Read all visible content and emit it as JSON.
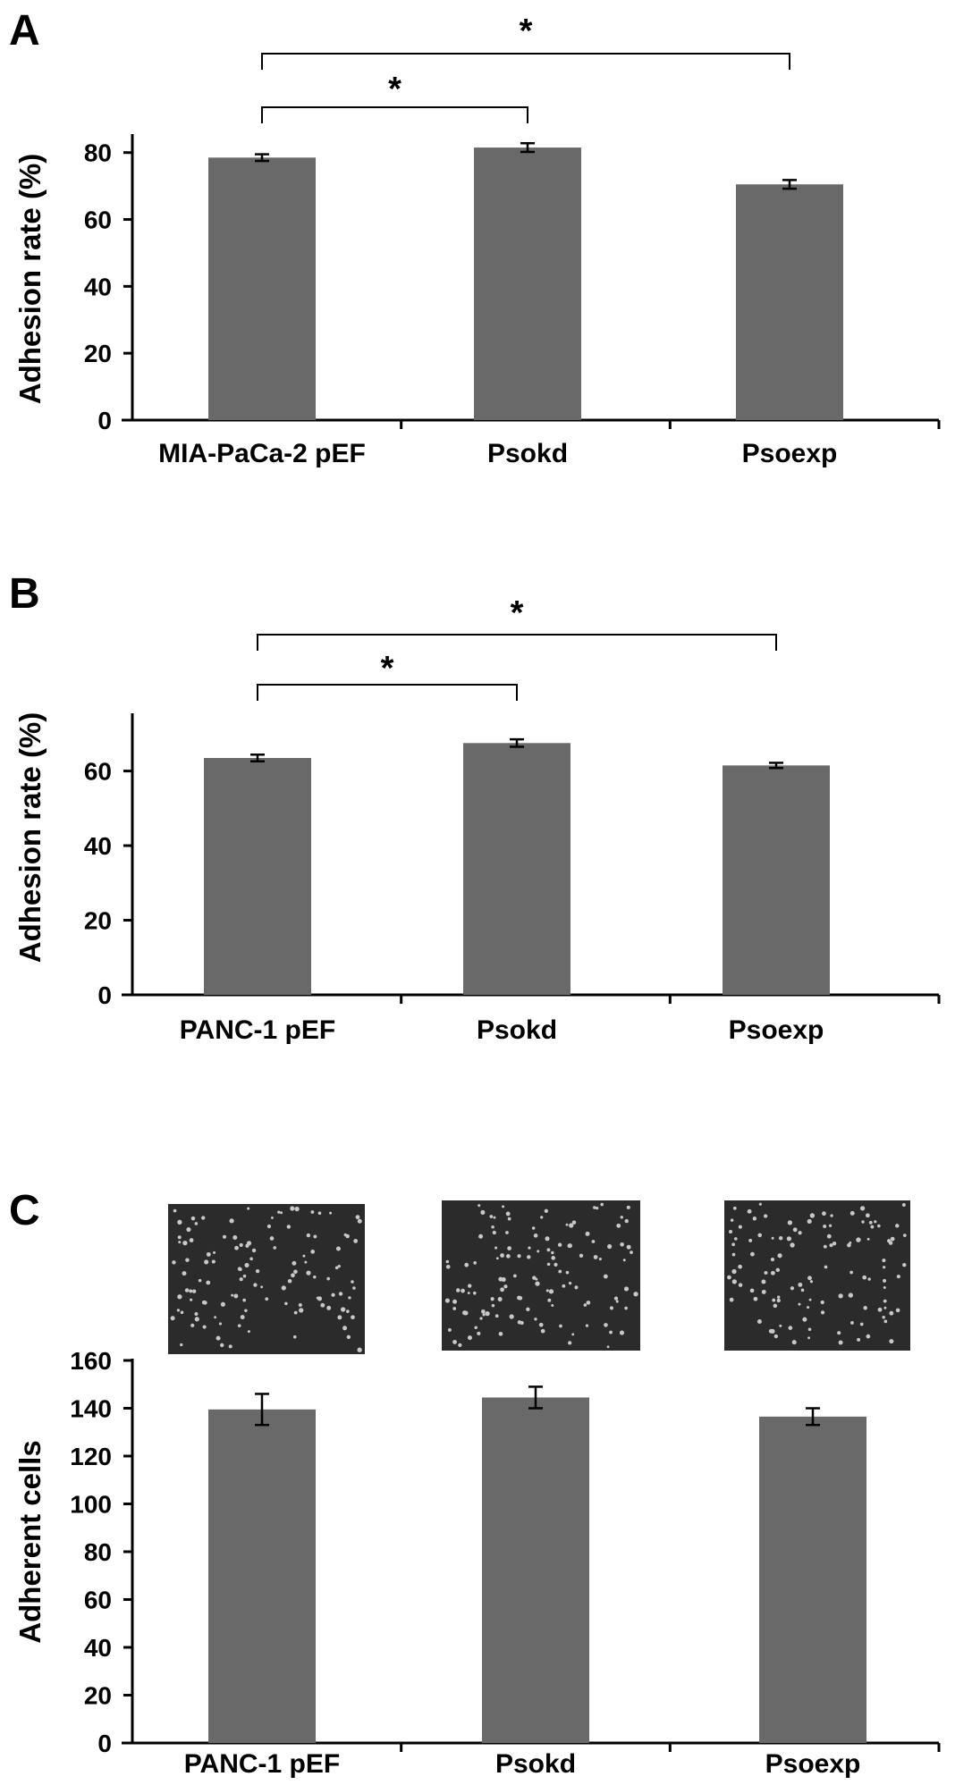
{
  "figure": {
    "bar_color": "#696969",
    "axis_color": "#000000",
    "micrograph_background": "#2b2b2b",
    "micrograph_dot_color": "#c8c8c8"
  },
  "chart_data": [
    {
      "panel": "A",
      "type": "bar",
      "title": "",
      "xlabel": "",
      "ylabel": "Adhesion rate (%)",
      "categories": [
        "MIA-PaCa-2 pEF",
        "Psokd",
        "Psoexp"
      ],
      "values": [
        78.5,
        81.5,
        70.5
      ],
      "errors": [
        1.0,
        1.3,
        1.3
      ],
      "ylim": [
        0,
        85
      ],
      "yticks": [
        0,
        20,
        40,
        60,
        80
      ],
      "grid": false,
      "legend": "none",
      "significance": [
        {
          "from": "MIA-PaCa-2 pEF",
          "to": "Psokd",
          "label": "*"
        },
        {
          "from": "MIA-PaCa-2 pEF",
          "to": "Psoexp",
          "label": "*"
        }
      ]
    },
    {
      "panel": "B",
      "type": "bar",
      "title": "",
      "xlabel": "",
      "ylabel": "Adhesion rate (%)",
      "categories": [
        "PANC-1 pEF",
        "Psokd",
        "Psoexp"
      ],
      "values": [
        63.5,
        67.5,
        61.5
      ],
      "errors": [
        0.9,
        1.0,
        0.7
      ],
      "ylim": [
        0,
        75
      ],
      "yticks": [
        0,
        20,
        40,
        60
      ],
      "grid": false,
      "legend": "none",
      "significance": [
        {
          "from": "PANC-1 pEF",
          "to": "Psokd",
          "label": "*"
        },
        {
          "from": "PANC-1 pEF",
          "to": "Psoexp",
          "label": "*"
        }
      ]
    },
    {
      "panel": "C",
      "type": "bar",
      "title": "",
      "xlabel": "",
      "ylabel": "Adherent cells",
      "categories": [
        "PANC-1 pEF",
        "Psokd",
        "Psoexp"
      ],
      "values": [
        139.5,
        144.5,
        136.5
      ],
      "errors": [
        6.5,
        4.5,
        3.5
      ],
      "ylim": [
        0,
        160
      ],
      "yticks": [
        0,
        20,
        40,
        60,
        80,
        100,
        120,
        140,
        160
      ],
      "grid": false,
      "legend": "none",
      "significance": []
    }
  ]
}
